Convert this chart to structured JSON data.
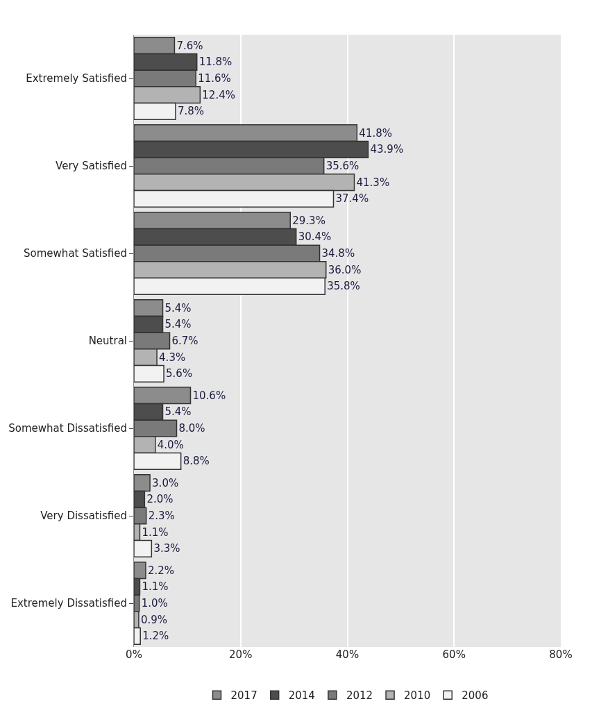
{
  "chart_data": {
    "type": "bar",
    "orientation": "horizontal",
    "categories": [
      "Extremely Satisfied",
      "Very Satisfied",
      "Somewhat Satisfied",
      "Neutral",
      "Somewhat Dissatisfied",
      "Very Dissatisfied",
      "Extremely Dissatisfied"
    ],
    "series": [
      {
        "name": "2017",
        "color": "#8c8c8c",
        "values": [
          7.6,
          41.8,
          29.3,
          5.4,
          10.6,
          3.0,
          2.2
        ],
        "value_labels": [
          "7.6%",
          "41.8%",
          "29.3%",
          "5.4%",
          "10.6%",
          "3.0%",
          "2.2%"
        ]
      },
      {
        "name": "2014",
        "color": "#4d4d4d",
        "values": [
          11.8,
          43.9,
          30.4,
          5.4,
          5.4,
          2.0,
          1.1
        ],
        "value_labels": [
          "11.8%",
          "43.9%",
          "30.4%",
          "5.4%",
          "5.4%",
          "2.0%",
          "1.1%"
        ]
      },
      {
        "name": "2012",
        "color": "#7a7a7a",
        "values": [
          11.6,
          35.6,
          34.8,
          6.7,
          8.0,
          2.3,
          1.0
        ],
        "value_labels": [
          "11.6%",
          "35.6%",
          "34.8%",
          "6.7%",
          "8.0%",
          "2.3%",
          "1.0%"
        ]
      },
      {
        "name": "2010",
        "color": "#b3b3b3",
        "values": [
          12.4,
          41.3,
          36.0,
          4.3,
          4.0,
          1.1,
          0.9
        ],
        "value_labels": [
          "12.4%",
          "41.3%",
          "36.0%",
          "4.3%",
          "4.0%",
          "1.1%",
          "0.9%"
        ]
      },
      {
        "name": "2006",
        "color": "#f2f2f2",
        "values": [
          7.8,
          37.4,
          35.8,
          5.6,
          8.8,
          3.3,
          1.2
        ],
        "value_labels": [
          "7.8%",
          "37.4%",
          "35.8%",
          "5.6%",
          "8.8%",
          "3.3%",
          "1.2%"
        ]
      }
    ],
    "xlim": [
      0,
      80
    ],
    "xticks": [
      {
        "value": 0,
        "label": "0%"
      },
      {
        "value": 20,
        "label": "20%"
      },
      {
        "value": 40,
        "label": "40%"
      },
      {
        "value": 60,
        "label": "60%"
      },
      {
        "value": 80,
        "label": "80%"
      }
    ],
    "grid": "x",
    "legend": "bottom"
  }
}
